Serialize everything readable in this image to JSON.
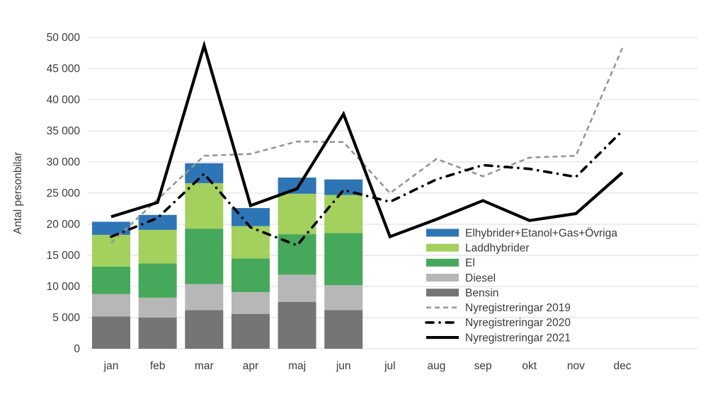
{
  "figure": {
    "background": "#ffffff",
    "grid_color": "#e2e2e2",
    "text_color": "#3a3a3a"
  },
  "chart_data": {
    "type": "combo-stacked-bar-line",
    "ylabel": "Antal personbilar",
    "ylim": [
      0,
      50000
    ],
    "grid": "horizontal",
    "legend_position": "inside-right",
    "categories": [
      "jan",
      "feb",
      "mar",
      "apr",
      "maj",
      "jun",
      "jul",
      "aug",
      "sep",
      "okt",
      "nov",
      "dec"
    ],
    "y_ticks": [
      {
        "v": 0,
        "label": "0"
      },
      {
        "v": 5000,
        "label": "5 000"
      },
      {
        "v": 10000,
        "label": "10 000"
      },
      {
        "v": 15000,
        "label": "15 000"
      },
      {
        "v": 20000,
        "label": "20 000"
      },
      {
        "v": 25000,
        "label": "25 000"
      },
      {
        "v": 30000,
        "label": "30 000"
      },
      {
        "v": 35000,
        "label": "35 000"
      },
      {
        "v": 40000,
        "label": "40 000"
      },
      {
        "v": 45000,
        "label": "45 000"
      },
      {
        "v": 50000,
        "label": "50 000"
      }
    ],
    "bar_series": [
      {
        "name": "Bensin",
        "color": "#757575",
        "values": [
          5200,
          5000,
          6200,
          5600,
          7500,
          6200
        ]
      },
      {
        "name": "Diesel",
        "color": "#b7b7b7",
        "values": [
          3600,
          3200,
          4200,
          3500,
          4400,
          4000
        ]
      },
      {
        "name": "El",
        "color": "#45a85a",
        "values": [
          4400,
          5500,
          8900,
          5400,
          6500,
          8400
        ]
      },
      {
        "name": "Laddhybrider",
        "color": "#a4d05d",
        "values": [
          5100,
          5400,
          7300,
          5200,
          6500,
          6100
        ]
      },
      {
        "name": "Elhybrider+Etanol+Gas+Övriga",
        "color": "#2e75b6",
        "values": [
          2100,
          2400,
          3200,
          2900,
          2600,
          2500
        ]
      }
    ],
    "line_series": [
      {
        "name": "Nyregistreringar 2019",
        "style": "dashed",
        "color": "#969696",
        "values": [
          17000,
          24000,
          31000,
          31300,
          33300,
          33200,
          25000,
          30500,
          27700,
          30700,
          31000,
          48300
        ]
      },
      {
        "name": "Nyregistreringar 2020",
        "style": "dashdot",
        "color": "#000000",
        "values": [
          18000,
          21000,
          28100,
          19500,
          16600,
          25500,
          23600,
          27200,
          29500,
          28900,
          27600,
          35000
        ]
      },
      {
        "name": "Nyregistreringar 2021",
        "style": "solid",
        "color": "#000000",
        "values": [
          21200,
          23500,
          48700,
          23000,
          25700,
          37700,
          18000,
          20800,
          23800,
          20600,
          21700,
          28300
        ]
      }
    ]
  }
}
